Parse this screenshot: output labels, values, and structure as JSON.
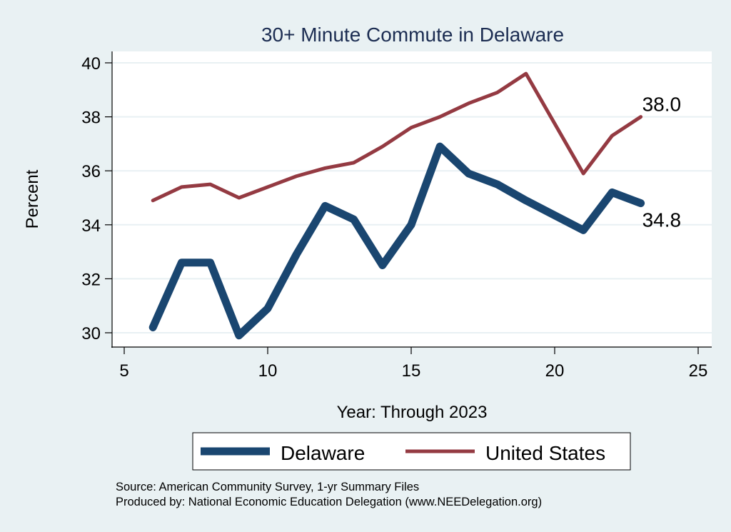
{
  "chart_data": {
    "type": "line",
    "title": "30+ Minute Commute in Delaware",
    "xlabel": "Year: Through 2023",
    "ylabel": "Percent",
    "xlim": [
      5,
      25
    ],
    "ylim": [
      30,
      40
    ],
    "x_ticks": [
      5,
      10,
      15,
      20,
      25
    ],
    "y_ticks": [
      30,
      32,
      34,
      36,
      38,
      40
    ],
    "grid": "horizontal",
    "legend_position": "bottom",
    "series": [
      {
        "name": "Delaware",
        "color": "#1a4670",
        "x": [
          6,
          7,
          8,
          9,
          10,
          11,
          12,
          13,
          14,
          15,
          16,
          17,
          18,
          19,
          21,
          22,
          23
        ],
        "y": [
          30.2,
          32.6,
          32.6,
          29.9,
          30.9,
          32.9,
          34.7,
          34.2,
          32.5,
          34.0,
          36.9,
          35.9,
          35.5,
          34.9,
          33.8,
          35.2,
          34.8
        ],
        "end_label": "34.8"
      },
      {
        "name": "United States",
        "color": "#943a42",
        "x": [
          6,
          7,
          8,
          9,
          10,
          11,
          12,
          13,
          14,
          15,
          16,
          17,
          18,
          19,
          21,
          22,
          23
        ],
        "y": [
          34.9,
          35.4,
          35.5,
          35.0,
          35.4,
          35.8,
          36.1,
          36.3,
          36.9,
          37.6,
          38.0,
          38.5,
          38.9,
          39.6,
          35.9,
          37.3,
          38.0
        ],
        "end_label": "38.0"
      }
    ],
    "notes": [
      "Source: American Community Survey, 1-yr Summary Files",
      "Produced by: National Economic Education Delegation (www.NEEDelegation.org)"
    ]
  }
}
